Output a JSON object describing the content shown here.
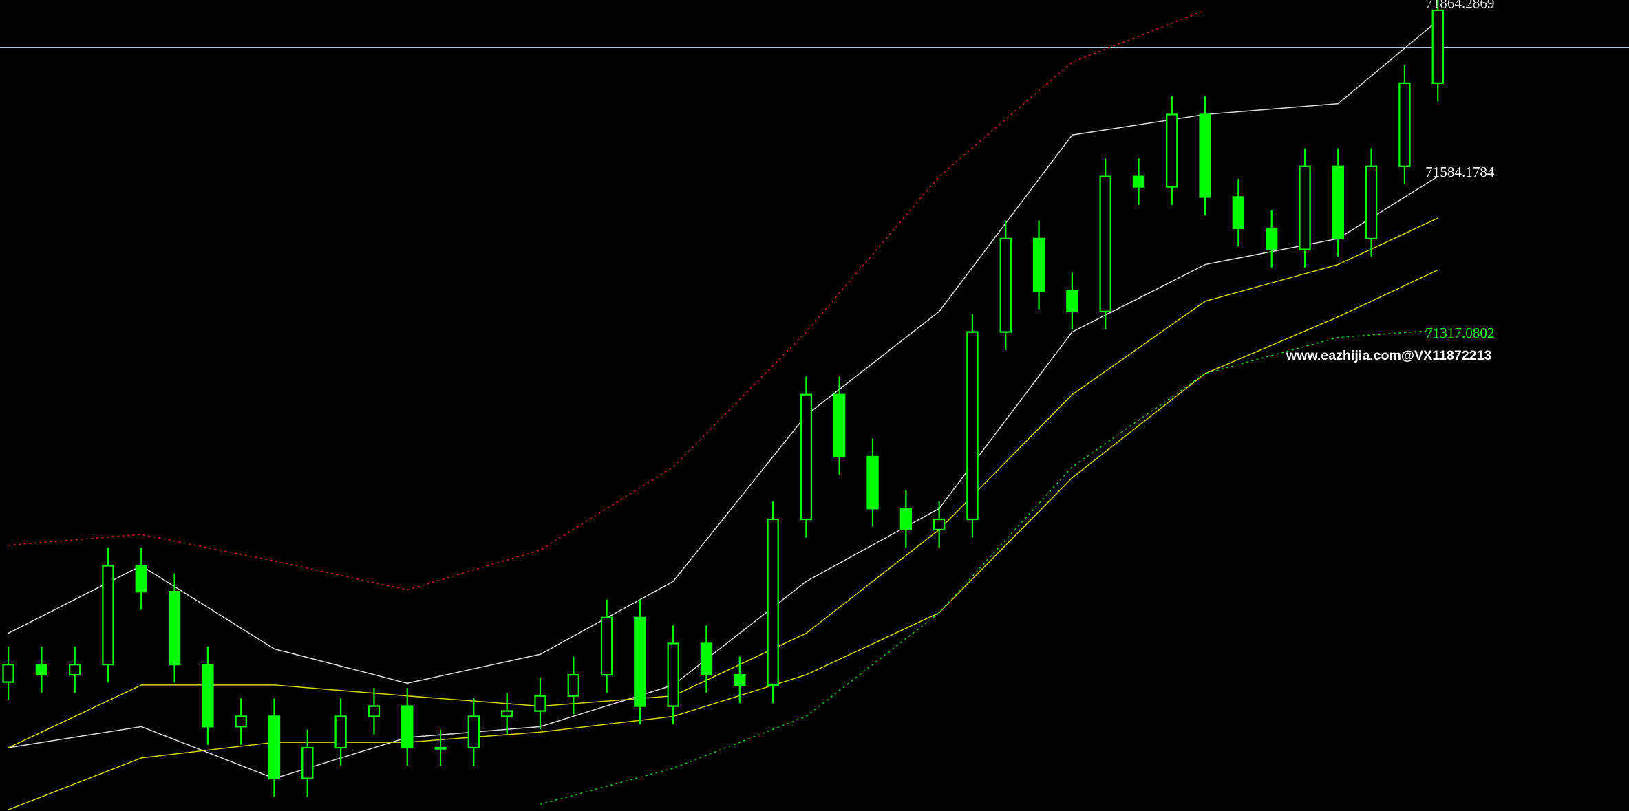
{
  "chart_data": {
    "type": "candlestick",
    "ylim": [
      70526,
      71872
    ],
    "categories": [
      null,
      null,
      null,
      null,
      null,
      null,
      null,
      null,
      null,
      null,
      null,
      null,
      null,
      null,
      null,
      null,
      null,
      null,
      null,
      null,
      null,
      null,
      null,
      null,
      null,
      null,
      null,
      null,
      null,
      null,
      null,
      null,
      null,
      null,
      null,
      null,
      null,
      null,
      null,
      null,
      null,
      null,
      null,
      null
    ],
    "candle_color": "#00ff00",
    "open": [
      70740,
      70769,
      70752,
      70769,
      70933,
      70890,
      70769,
      70666,
      70683,
      70580,
      70631,
      70683,
      70700,
      70631,
      70631,
      70683,
      70692,
      70717,
      70752,
      70847,
      70700,
      70804,
      70752,
      70735,
      71010,
      71217,
      71114,
      71028,
      70993,
      71010,
      71321,
      71476,
      71389,
      71355,
      71579,
      71562,
      71682,
      71545,
      71493,
      71458,
      71596,
      71476,
      71596,
      71734
    ],
    "high": [
      70799,
      70799,
      70799,
      70963,
      70963,
      70920,
      70799,
      70713,
      70713,
      70661,
      70713,
      70730,
      70730,
      70661,
      70713,
      70722,
      70747,
      70782,
      70877,
      70877,
      70834,
      70834,
      70782,
      71040,
      71247,
      71247,
      71144,
      71058,
      71040,
      71351,
      71506,
      71506,
      71419,
      71609,
      71609,
      71712,
      71712,
      71575,
      71523,
      71626,
      71626,
      71626,
      71764,
      71885
    ],
    "low": [
      70710,
      70722,
      70722,
      70739,
      70860,
      70739,
      70636,
      70636,
      70550,
      70550,
      70601,
      70653,
      70601,
      70601,
      70601,
      70653,
      70662,
      70687,
      70722,
      70670,
      70670,
      70722,
      70705,
      70705,
      70980,
      71084,
      70998,
      70963,
      70963,
      70980,
      71291,
      71359,
      71325,
      71325,
      71532,
      71532,
      71515,
      71463,
      71428,
      71428,
      71446,
      71446,
      71566,
      71704
    ],
    "close": [
      70769,
      70752,
      70769,
      70933,
      70890,
      70769,
      70666,
      70683,
      70580,
      70631,
      70683,
      70700,
      70631,
      70631,
      70683,
      70692,
      70717,
      70752,
      70847,
      70700,
      70804,
      70752,
      70735,
      71010,
      71217,
      71114,
      71028,
      70993,
      71010,
      71321,
      71476,
      71389,
      71355,
      71579,
      71562,
      71682,
      71545,
      71493,
      71458,
      71596,
      71476,
      71596,
      71734,
      71855
    ],
    "x": [
      0,
      4,
      8,
      12,
      16,
      20,
      24,
      28,
      32,
      36,
      40,
      43
    ],
    "series": [
      {
        "color": "#cc2222",
        "style": "dotted",
        "values": [
          70967,
          70985,
          70941,
          70893,
          70959,
          71097,
          71321,
          71579,
          71769,
          71855,
          null,
          null
        ]
      },
      {
        "color": "#dddddd",
        "style": "solid",
        "values": [
          70821,
          70933,
          70795,
          70738,
          70786,
          70907,
          71183,
          71355,
          71648,
          71682,
          71700,
          71838
        ]
      },
      {
        "color": "#dddddd",
        "style": "solid",
        "values": [
          70631,
          70666,
          70580,
          70648,
          70666,
          70735,
          70907,
          71028,
          71321,
          71433,
          71476,
          71579
        ]
      },
      {
        "color": "#d4d400",
        "style": "solid",
        "values": [
          70631,
          70735,
          70735,
          70717,
          70700,
          70717,
          70821,
          70993,
          71217,
          71372,
          71433,
          71510
        ]
      },
      {
        "color": "#d4d400",
        "style": "solid",
        "values": [
          70528,
          70614,
          70640,
          70640,
          70657,
          70683,
          70752,
          70855,
          71079,
          71252,
          71346,
          71424
        ]
      },
      {
        "color": "#22cc22",
        "style": "dotted",
        "values": [
          null,
          null,
          null,
          null,
          70537,
          70597,
          70683,
          70855,
          71097,
          71252,
          71312,
          71324
        ]
      }
    ],
    "price_line": {
      "value": 71793,
      "color": "#a8c8e8"
    },
    "price_labels": [
      {
        "value": 71864.2869,
        "color": "#dddddd"
      },
      {
        "value": 71584.1784,
        "color": "#ffffff"
      },
      {
        "value": 71317.0802,
        "color": "#22ff22"
      }
    ],
    "watermark": "www.eazhijia.com@VX11872213"
  }
}
